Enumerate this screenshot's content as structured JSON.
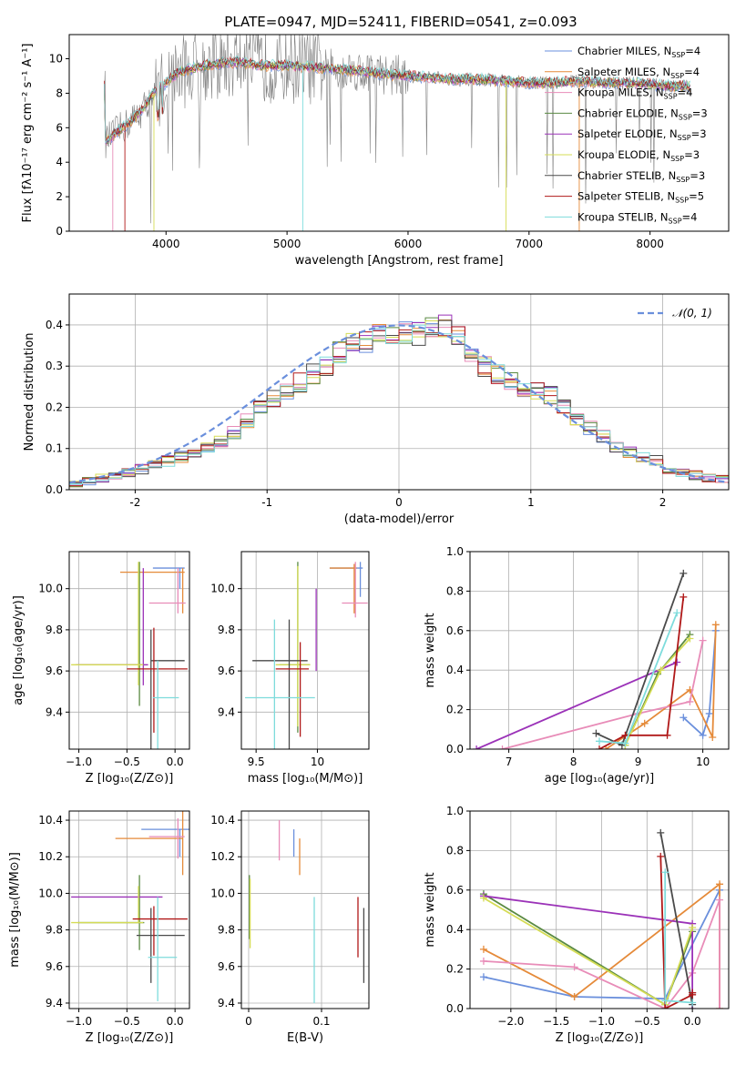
{
  "figure": {
    "title": "PLATE=0947, MJD=52411, FIBERID=0541, z=0.093"
  },
  "colors": {
    "Chabrier MILES": "#6a8fdc",
    "Salpeter MILES": "#e58a39",
    "Kroupa MILES": "#e88cb8",
    "Chabrier ELODIE": "#5a8a42",
    "Salpeter ELODIE": "#9b32b8",
    "Kroupa ELODIE": "#d5dc55",
    "Chabrier STELIB": "#4a4a4a",
    "Salpeter STELIB": "#b01818",
    "Kroupa STELIB": "#7edcdc",
    "gauss": "#6a8fdc"
  },
  "chart_data": [
    {
      "id": "spectrum",
      "type": "line",
      "xlabel": "wavelength [Angstrom, rest frame]",
      "ylabel": "Flux [fλ10⁻¹⁷ erg cm⁻² s⁻¹ A⁻¹]",
      "xlim": [
        3200,
        8650
      ],
      "ylim": [
        0,
        11.4
      ],
      "xticks": [
        4000,
        5000,
        6000,
        7000,
        8000
      ],
      "yticks": [
        0,
        2,
        4,
        6,
        8,
        10
      ],
      "grid": false,
      "legend_position": "top-right",
      "data_color": "#808080",
      "continuum": {
        "x": [
          3500,
          3600,
          3700,
          3800,
          3900,
          4000,
          4100,
          4200,
          4400,
          4600,
          4800,
          5000,
          5200,
          5400,
          5600,
          5800,
          6000,
          6200,
          6400,
          6600,
          6800,
          7000,
          7200,
          7400,
          7600,
          7800,
          8000,
          8200,
          8300
        ],
        "y": [
          5.2,
          5.8,
          6.3,
          7.0,
          8.0,
          8.6,
          9.2,
          9.4,
          9.7,
          9.8,
          9.6,
          9.6,
          9.5,
          9.4,
          9.3,
          9.1,
          9.0,
          8.9,
          8.8,
          8.8,
          8.7,
          8.6,
          8.6,
          8.7,
          8.6,
          8.6,
          8.5,
          8.4,
          8.4
        ]
      },
      "legend": [
        {
          "model": "Chabrier MILES",
          "label": "Chabrier MILES, N",
          "sub": "SSP",
          "n": "=4"
        },
        {
          "model": "Salpeter MILES",
          "label": "Salpeter MILES, N",
          "sub": "SSP",
          "n": "=4"
        },
        {
          "model": "Kroupa MILES",
          "label": "Kroupa MILES, N",
          "sub": "SSP",
          "n": "=4"
        },
        {
          "model": "Chabrier ELODIE",
          "label": "Chabrier ELODIE, N",
          "sub": "SSP",
          "n": "=3"
        },
        {
          "model": "Salpeter ELODIE",
          "label": "Salpeter ELODIE, N",
          "sub": "SSP",
          "n": "=3"
        },
        {
          "model": "Kroupa ELODIE",
          "label": "Kroupa ELODIE, N",
          "sub": "SSP",
          "n": "=3"
        },
        {
          "model": "Chabrier STELIB",
          "label": "Chabrier STELIB, N",
          "sub": "SSP",
          "n": "=3"
        },
        {
          "model": "Salpeter STELIB",
          "label": "Salpeter STELIB, N",
          "sub": "SSP",
          "n": "=5"
        },
        {
          "model": "Kroupa STELIB",
          "label": "Kroupa STELIB, N",
          "sub": "SSP",
          "n": "=4"
        }
      ]
    },
    {
      "id": "residuals",
      "type": "histogram",
      "xlabel": "(data-model)/error",
      "ylabel": "Normed distribution",
      "xlim": [
        -2.5,
        2.5
      ],
      "ylim": [
        0,
        0.475
      ],
      "xticks": [
        -2,
        -1,
        0,
        1,
        2
      ],
      "yticks": [
        0.0,
        0.1,
        0.2,
        0.3,
        0.4
      ],
      "grid": true,
      "legend_position": "top-right",
      "legend_label": "𝒩(0, 1)",
      "bin_edges_range": [
        -2.5,
        2.5
      ],
      "n_bins": 50,
      "base": [
        0.017,
        0.022,
        0.027,
        0.033,
        0.04,
        0.05,
        0.06,
        0.07,
        0.08,
        0.09,
        0.1,
        0.12,
        0.14,
        0.17,
        0.2,
        0.22,
        0.24,
        0.26,
        0.28,
        0.3,
        0.33,
        0.35,
        0.36,
        0.37,
        0.37,
        0.38,
        0.38,
        0.39,
        0.4,
        0.38,
        0.34,
        0.3,
        0.28,
        0.26,
        0.25,
        0.24,
        0.23,
        0.2,
        0.17,
        0.15,
        0.13,
        0.1,
        0.09,
        0.08,
        0.07,
        0.05,
        0.04,
        0.035,
        0.03,
        0.025
      ]
    },
    {
      "id": "age_vs_Z",
      "type": "errorbar",
      "xlabel": "Z [log₁₀(Z/Z⊙)]",
      "ylabel": "age  [log₁₀(age/yr)]",
      "xlim": [
        -1.1,
        0.15
      ],
      "ylim": [
        9.22,
        10.18
      ],
      "xticks": [
        -1.0,
        -0.5,
        0.0
      ],
      "xticklabels": [
        "−1.0",
        "−0.5",
        "0.0"
      ],
      "yticks": [
        9.4,
        9.6,
        9.8,
        10.0
      ],
      "grid": true,
      "points": [
        {
          "model": "Chabrier MILES",
          "x": 0.05,
          "xerr": [
            0.28,
            0.05
          ],
          "y": 10.1,
          "yerr": [
            0.1,
            0.0
          ]
        },
        {
          "model": "Salpeter MILES",
          "x": 0.08,
          "xerr": [
            0.65,
            0.02
          ],
          "y": 10.08,
          "yerr": [
            0.2,
            0.02
          ]
        },
        {
          "model": "Kroupa MILES",
          "x": 0.03,
          "xerr": [
            0.3,
            0.08
          ],
          "y": 9.93,
          "yerr": [
            0.05,
            0.17
          ]
        },
        {
          "model": "Chabrier ELODIE",
          "x": -0.37,
          "xerr": [
            0.64,
            0.05
          ],
          "y": 9.63,
          "yerr": [
            0.2,
            0.5
          ]
        },
        {
          "model": "Salpeter ELODIE",
          "x": -0.33,
          "xerr": [
            0.7,
            0.05
          ],
          "y": 9.63,
          "yerr": [
            0.1,
            0.47
          ]
        },
        {
          "model": "Kroupa ELODIE",
          "x": -0.38,
          "xerr": [
            0.7,
            0.05
          ],
          "y": 9.63,
          "yerr": [
            0.1,
            0.5
          ]
        },
        {
          "model": "Chabrier STELIB",
          "x": -0.25,
          "xerr": [
            0.0,
            0.35
          ],
          "y": 9.65,
          "yerr": [
            0.48,
            0.15
          ]
        },
        {
          "model": "Salpeter STELIB",
          "x": -0.22,
          "xerr": [
            0.28,
            0.35
          ],
          "y": 9.61,
          "yerr": [
            0.31,
            0.2
          ]
        },
        {
          "model": "Kroupa STELIB",
          "x": -0.18,
          "xerr": [
            0.05,
            0.22
          ],
          "y": 9.47,
          "yerr": [
            0.27,
            0.18
          ]
        }
      ]
    },
    {
      "id": "age_vs_mass",
      "type": "errorbar",
      "xlabel": "mass [log₁₀(M/M⊙)]",
      "ylabel": "",
      "xlim": [
        9.38,
        10.42
      ],
      "ylim": [
        9.22,
        10.18
      ],
      "xticks": [
        9.5,
        10.0
      ],
      "yticks": [
        9.4,
        9.6,
        9.8,
        10.0
      ],
      "grid": true,
      "points": [
        {
          "model": "Chabrier MILES",
          "x": 10.35,
          "xerr": [
            0.25,
            0.02
          ],
          "y": 10.1,
          "yerr": [
            0.14,
            0.03
          ]
        },
        {
          "model": "Salpeter MILES",
          "x": 10.3,
          "xerr": [
            0.2,
            0.02
          ],
          "y": 10.1,
          "yerr": [
            0.22,
            0.02
          ]
        },
        {
          "model": "Kroupa MILES",
          "x": 10.31,
          "xerr": [
            0.11,
            0.1
          ],
          "y": 9.93,
          "yerr": [
            0.07,
            0.2
          ]
        },
        {
          "model": "Chabrier ELODIE",
          "x": 9.84,
          "xerr": [
            0.15,
            0.1
          ],
          "y": 9.63,
          "yerr": [
            0.33,
            0.5
          ]
        },
        {
          "model": "Salpeter ELODIE",
          "x": 9.99,
          "xerr": [
            0.0,
            0.0
          ],
          "y": 9.8,
          "yerr": [
            0.2,
            0.2
          ]
        },
        {
          "model": "Kroupa ELODIE",
          "x": 9.84,
          "xerr": [
            0.18,
            0.1
          ],
          "y": 9.63,
          "yerr": [
            0.3,
            0.48
          ]
        },
        {
          "model": "Chabrier STELIB",
          "x": 9.77,
          "xerr": [
            0.3,
            0.15
          ],
          "y": 9.65,
          "yerr": [
            0.48,
            0.2
          ]
        },
        {
          "model": "Salpeter STELIB",
          "x": 9.86,
          "xerr": [
            0.2,
            0.07
          ],
          "y": 9.61,
          "yerr": [
            0.33,
            0.13
          ]
        },
        {
          "model": "Kroupa STELIB",
          "x": 9.65,
          "xerr": [
            0.24,
            0.33
          ],
          "y": 9.47,
          "yerr": [
            0.25,
            0.38
          ]
        }
      ]
    },
    {
      "id": "weight_vs_age",
      "type": "line",
      "xlabel": "age  [log₁₀(age/yr)]",
      "ylabel": "mass weight",
      "xlim": [
        6.4,
        10.4
      ],
      "ylim": [
        0,
        1
      ],
      "xticks": [
        7,
        8,
        9,
        10
      ],
      "yticks": [
        0.0,
        0.2,
        0.4,
        0.6,
        0.8,
        1.0
      ],
      "grid": true,
      "series": [
        {
          "model": "Chabrier MILES",
          "x": [
            9.7,
            10.0,
            10.1,
            10.2
          ],
          "y": [
            0.16,
            0.07,
            0.18,
            0.6
          ]
        },
        {
          "model": "Salpeter MILES",
          "x": [
            8.5,
            9.1,
            9.8,
            10.15,
            10.2
          ],
          "y": [
            0.0,
            0.13,
            0.3,
            0.06,
            0.63
          ]
        },
        {
          "model": "Kroupa MILES",
          "x": [
            6.9,
            9.0,
            9.8,
            10.0
          ],
          "y": [
            0.0,
            0.18,
            0.24,
            0.55
          ]
        },
        {
          "model": "Chabrier ELODIE",
          "x": [
            8.8,
            9.3,
            9.8
          ],
          "y": [
            0.02,
            0.38,
            0.58
          ]
        },
        {
          "model": "Salpeter ELODIE",
          "x": [
            6.5,
            9.6
          ],
          "y": [
            0.0,
            0.44
          ]
        },
        {
          "model": "Kroupa ELODIE",
          "x": [
            8.8,
            9.35,
            9.8
          ],
          "y": [
            0.02,
            0.4,
            0.56
          ]
        },
        {
          "model": "Chabrier STELIB",
          "x": [
            8.35,
            8.75,
            9.7
          ],
          "y": [
            0.08,
            0.02,
            0.89
          ]
        },
        {
          "model": "Salpeter STELIB",
          "x": [
            8.4,
            8.8,
            9.45,
            9.7
          ],
          "y": [
            0.0,
            0.07,
            0.07,
            0.77
          ]
        },
        {
          "model": "Kroupa STELIB",
          "x": [
            8.4,
            8.8,
            9.6
          ],
          "y": [
            0.04,
            0.03,
            0.69
          ]
        }
      ]
    },
    {
      "id": "mass_vs_Z",
      "type": "errorbar",
      "xlabel": "Z [log₁₀(Z/Z⊙)]",
      "ylabel": "mass [log₁₀(M/M⊙)]",
      "xlim": [
        -1.1,
        0.15
      ],
      "ylim": [
        9.37,
        10.45
      ],
      "xticks": [
        -1.0,
        -0.5,
        0.0
      ],
      "xticklabels": [
        "−1.0",
        "−0.5",
        "0.0"
      ],
      "yticks": [
        9.4,
        9.6,
        9.8,
        10.0,
        10.2,
        10.4
      ],
      "grid": true,
      "points": [
        {
          "model": "Chabrier MILES",
          "x": 0.05,
          "xerr": [
            0.4,
            0.1
          ],
          "y": 10.35,
          "yerr": [
            0.15,
            0.0
          ]
        },
        {
          "model": "Salpeter MILES",
          "x": 0.08,
          "xerr": [
            0.7,
            0.0
          ],
          "y": 10.3,
          "yerr": [
            0.2,
            0.2
          ]
        },
        {
          "model": "Kroupa MILES",
          "x": 0.03,
          "xerr": [
            0.3,
            0.07
          ],
          "y": 10.31,
          "yerr": [
            0.12,
            0.1
          ]
        },
        {
          "model": "Chabrier ELODIE",
          "x": -0.37,
          "xerr": [
            0.64,
            0.05
          ],
          "y": 9.84,
          "yerr": [
            0.15,
            0.26
          ]
        },
        {
          "model": "Salpeter ELODIE",
          "x": -0.33,
          "xerr": [
            0.75,
            0.2
          ],
          "y": 9.98,
          "yerr": [
            0.0,
            0.0
          ]
        },
        {
          "model": "Kroupa ELODIE",
          "x": -0.38,
          "xerr": [
            0.7,
            0.05
          ],
          "y": 9.84,
          "yerr": [
            0.0,
            0.2
          ]
        },
        {
          "model": "Chabrier STELIB",
          "x": -0.25,
          "xerr": [
            0.15,
            0.35
          ],
          "y": 9.77,
          "yerr": [
            0.26,
            0.15
          ]
        },
        {
          "model": "Salpeter STELIB",
          "x": -0.22,
          "xerr": [
            0.22,
            0.35
          ],
          "y": 9.86,
          "yerr": [
            0.2,
            0.07
          ]
        },
        {
          "model": "Kroupa STELIB",
          "x": -0.18,
          "xerr": [
            0.1,
            0.2
          ],
          "y": 9.65,
          "yerr": [
            0.24,
            0.33
          ]
        }
      ]
    },
    {
      "id": "mass_vs_ebv",
      "type": "errorbar",
      "xlabel": "E(B-V)",
      "ylabel": "",
      "xlim": [
        -0.01,
        0.165
      ],
      "ylim": [
        9.37,
        10.45
      ],
      "xticks": [
        0.0,
        0.1
      ],
      "yticks": [
        9.4,
        9.6,
        9.8,
        10.0,
        10.2,
        10.4
      ],
      "grid": true,
      "points": [
        {
          "model": "Chabrier MILES",
          "x": 0.062,
          "xerr": [
            0,
            0
          ],
          "y": 10.3,
          "yerr": [
            0.1,
            0.05
          ]
        },
        {
          "model": "Salpeter MILES",
          "x": 0.07,
          "xerr": [
            0,
            0
          ],
          "y": 10.2,
          "yerr": [
            0.1,
            0.1
          ]
        },
        {
          "model": "Kroupa MILES",
          "x": 0.042,
          "xerr": [
            0,
            0
          ],
          "y": 10.28,
          "yerr": [
            0.1,
            0.12
          ]
        },
        {
          "model": "Chabrier ELODIE",
          "x": 0.001,
          "xerr": [
            0,
            0
          ],
          "y": 9.95,
          "yerr": [
            0.2,
            0.15
          ]
        },
        {
          "model": "Kroupa ELODIE",
          "x": 0.002,
          "xerr": [
            0,
            0
          ],
          "y": 9.9,
          "yerr": [
            0.2,
            0.18
          ]
        },
        {
          "model": "Chabrier STELIB",
          "x": 0.158,
          "xerr": [
            0,
            0
          ],
          "y": 9.72,
          "yerr": [
            0.21,
            0.2
          ]
        },
        {
          "model": "Salpeter STELIB",
          "x": 0.15,
          "xerr": [
            0,
            0
          ],
          "y": 9.8,
          "yerr": [
            0.15,
            0.18
          ]
        },
        {
          "model": "Kroupa STELIB",
          "x": 0.09,
          "xerr": [
            0,
            0
          ],
          "y": 9.68,
          "yerr": [
            0.28,
            0.3
          ]
        }
      ]
    },
    {
      "id": "weight_vs_Z",
      "type": "line",
      "xlabel": "Z [log₁₀(Z/Z⊙)]",
      "ylabel": "mass weight",
      "xlim": [
        -2.45,
        0.4
      ],
      "ylim": [
        0,
        1
      ],
      "xticks": [
        -2.0,
        -1.5,
        -1.0,
        -0.5,
        0.0
      ],
      "xticklabels": [
        "−2.0",
        "−1.5",
        "−1.0",
        "−0.5",
        "0.0"
      ],
      "yticks": [
        0.0,
        0.2,
        0.4,
        0.6,
        0.8,
        1.0
      ],
      "grid": true,
      "series": [
        {
          "model": "Chabrier MILES",
          "x": [
            -2.3,
            -1.3,
            -0.3,
            0.3
          ],
          "y": [
            0.16,
            0.06,
            0.05,
            0.6
          ]
        },
        {
          "model": "Salpeter MILES",
          "x": [
            -2.3,
            -1.3,
            0.3,
            0.3
          ],
          "y": [
            0.3,
            0.06,
            0.63,
            0.0
          ]
        },
        {
          "model": "Kroupa MILES",
          "x": [
            -2.3,
            -1.3,
            -0.3,
            0.0,
            0.3,
            0.3
          ],
          "y": [
            0.24,
            0.21,
            0.0,
            0.18,
            0.55,
            0.0
          ]
        },
        {
          "model": "Chabrier ELODIE",
          "x": [
            -2.3,
            -0.3,
            0.0
          ],
          "y": [
            0.58,
            0.02,
            0.39
          ]
        },
        {
          "model": "Salpeter ELODIE",
          "x": [
            -2.3,
            0.0,
            0.0
          ],
          "y": [
            0.57,
            0.43,
            0.0
          ]
        },
        {
          "model": "Kroupa ELODIE",
          "x": [
            -2.3,
            -0.3,
            0.0
          ],
          "y": [
            0.56,
            0.02,
            0.41
          ]
        },
        {
          "model": "Chabrier STELIB",
          "x": [
            -0.35,
            0.0,
            0.0
          ],
          "y": [
            0.89,
            0.02,
            0.08
          ]
        },
        {
          "model": "Salpeter STELIB",
          "x": [
            -0.35,
            -0.3,
            0.0,
            0.0
          ],
          "y": [
            0.77,
            0.0,
            0.07,
            0.08
          ]
        },
        {
          "model": "Kroupa STELIB",
          "x": [
            -0.3,
            -0.3,
            0.0
          ],
          "y": [
            0.69,
            0.04,
            0.03
          ]
        }
      ]
    }
  ]
}
